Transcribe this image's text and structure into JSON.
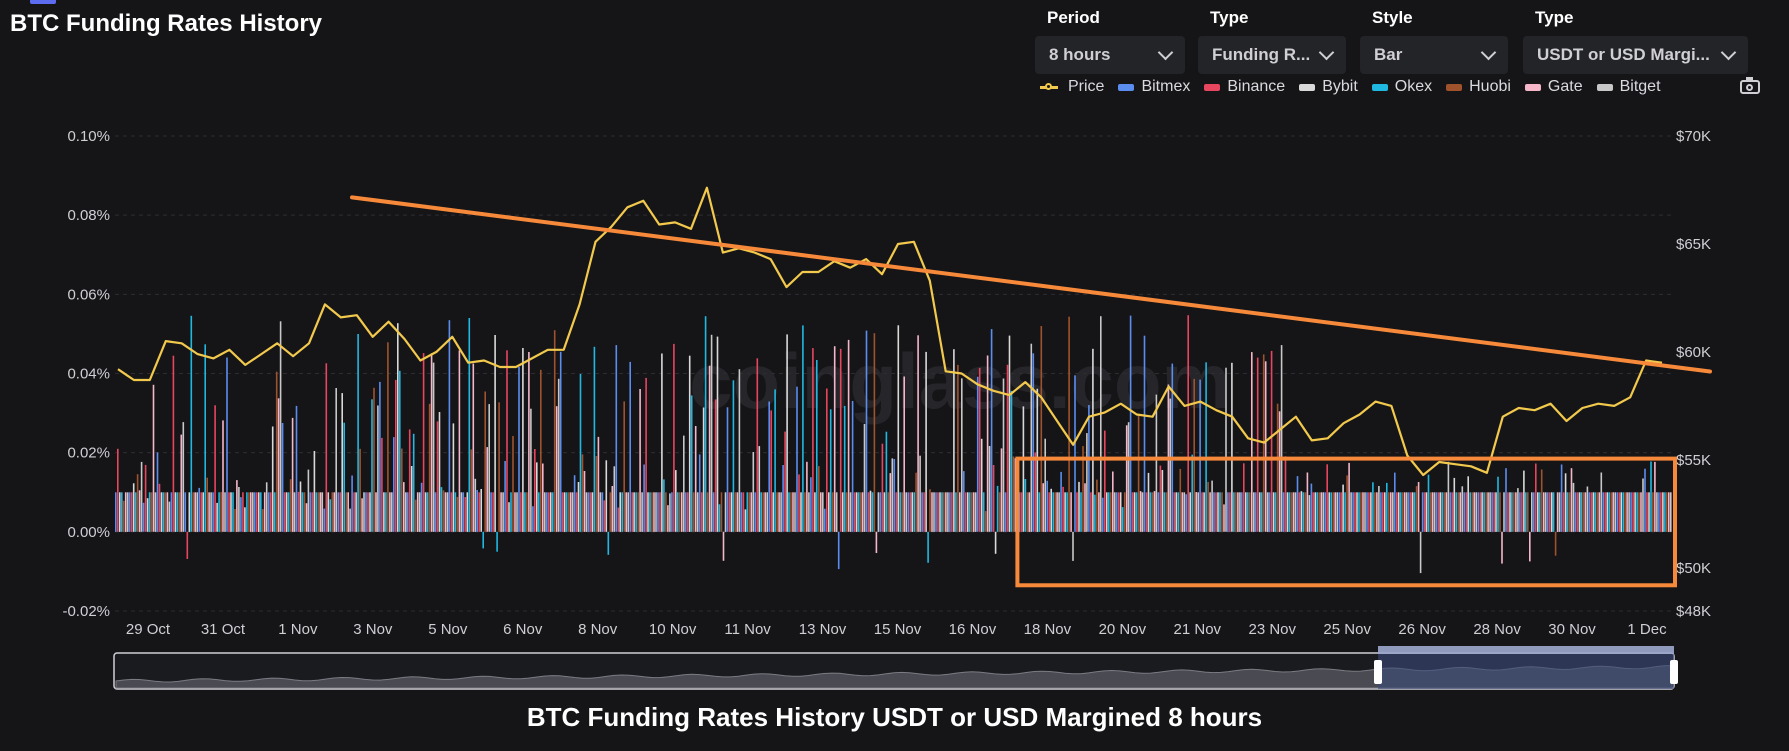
{
  "header": {
    "title": "BTC Funding Rates History"
  },
  "controls": [
    {
      "label": "Period",
      "value": "8 hours"
    },
    {
      "label": "Type",
      "value": "Funding R..."
    },
    {
      "label": "Style",
      "value": "Bar"
    },
    {
      "label": "Type",
      "value": "USDT or USD Margi..."
    }
  ],
  "legend": [
    {
      "name": "Price",
      "color": "#f2c94c"
    },
    {
      "name": "Bitmex",
      "color": "#5b8def"
    },
    {
      "name": "Binance",
      "color": "#e8455f"
    },
    {
      "name": "Bybit",
      "color": "#d9d9d9"
    },
    {
      "name": "Okex",
      "color": "#1fb8e0"
    },
    {
      "name": "Huobi",
      "color": "#a0522d"
    },
    {
      "name": "Gate",
      "color": "#f4b6c8"
    },
    {
      "name": "Bitget",
      "color": "#c8c8c8"
    }
  ],
  "watermark": "coinglass.com",
  "bottom_title": "BTC Funding Rates History USDT or USD Margined 8 hours",
  "chart_data": {
    "type": "bar",
    "left_axis": {
      "ticks": [
        "0.10%",
        "0.08%",
        "0.06%",
        "0.04%",
        "0.02%",
        "0.00%",
        "-0.02%"
      ],
      "values": [
        0.1,
        0.08,
        0.06,
        0.04,
        0.02,
        0.0,
        -0.02
      ],
      "ylim": [
        -0.02,
        0.1
      ]
    },
    "right_axis": {
      "ticks": [
        "$70K",
        "$65K",
        "$60K",
        "$55K",
        "$50K",
        "$48K"
      ],
      "values": [
        70000,
        65000,
        60000,
        55000,
        50000,
        48000
      ],
      "ylim": [
        48000,
        70000
      ]
    },
    "x_ticks": [
      "29 Oct",
      "31 Oct",
      "1 Nov",
      "3 Nov",
      "5 Nov",
      "6 Nov",
      "8 Nov",
      "10 Nov",
      "11 Nov",
      "13 Nov",
      "15 Nov",
      "16 Nov",
      "18 Nov",
      "20 Nov",
      "21 Nov",
      "23 Nov",
      "25 Nov",
      "26 Nov",
      "28 Nov",
      "30 Nov",
      "1 Dec"
    ],
    "price": {
      "name": "Price",
      "values": [
        59200,
        58700,
        58700,
        60500,
        60400,
        59900,
        59700,
        60100,
        59400,
        59900,
        60400,
        59800,
        60400,
        62200,
        61600,
        61700,
        60700,
        61400,
        60600,
        59600,
        60000,
        60700,
        59500,
        59600,
        59300,
        59300,
        59700,
        60100,
        60100,
        62200,
        65100,
        65800,
        66700,
        67000,
        65900,
        66000,
        65700,
        67600,
        64600,
        64800,
        64600,
        64300,
        63000,
        63700,
        63700,
        64200,
        63900,
        64300,
        63600,
        65000,
        65100,
        63300,
        59100,
        59000,
        58500,
        58200,
        58000,
        58600,
        57900,
        56800,
        55700,
        57000,
        57200,
        57600,
        57100,
        57000,
        58400,
        57500,
        57700,
        57300,
        57000,
        56000,
        55800,
        56400,
        57000,
        55900,
        56000,
        56700,
        57100,
        57700,
        57500,
        55200,
        54300,
        54900,
        54800,
        54700,
        54400,
        57000,
        57400,
        57300,
        57600,
        56800,
        57400,
        57600,
        57500,
        57900,
        59600,
        59500
      ],
      "comment": "approximate"
    },
    "trendline": {
      "from": {
        "x_index": 0,
        "value": 0.0845
      },
      "to": {
        "x_index": 112,
        "value": 0.0405
      }
    },
    "highlight_box": {
      "from_tick": "18 Nov",
      "to_tick": "1 Dec",
      "rate_range": [
        -0.0135,
        0.0185
      ]
    }
  }
}
